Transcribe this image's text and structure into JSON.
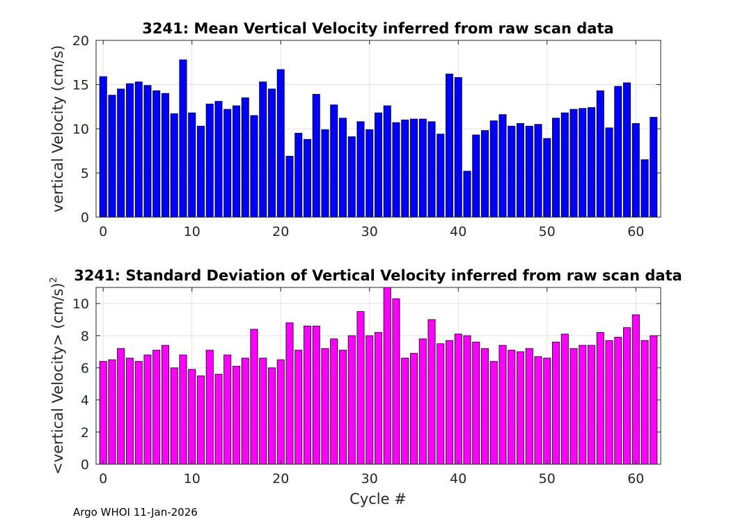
{
  "footer": "Argo WHOI 11-Jan-2026",
  "colors": {
    "mean_bar": "#0000ff",
    "std_bar": "#ff00ff",
    "edge": "#000000"
  },
  "chart_data": [
    {
      "type": "bar",
      "title": "3241: Mean Vertical Velocity inferred from raw scan data",
      "xlabel": "",
      "ylabel": "vertical Velocity (cm/s)",
      "xlim": [
        -0.8,
        62.8
      ],
      "ylim": [
        0,
        20
      ],
      "xticks": [
        0,
        10,
        20,
        30,
        40,
        50,
        60
      ],
      "yticks": [
        0,
        5,
        10,
        15,
        20
      ],
      "grid": true,
      "x": [
        0,
        1,
        2,
        3,
        4,
        5,
        6,
        7,
        8,
        9,
        10,
        11,
        12,
        13,
        14,
        15,
        16,
        17,
        18,
        19,
        20,
        21,
        22,
        23,
        24,
        25,
        26,
        27,
        28,
        29,
        30,
        31,
        32,
        33,
        34,
        35,
        36,
        37,
        38,
        39,
        40,
        41,
        42,
        43,
        44,
        45,
        46,
        47,
        48,
        49,
        50,
        51,
        52,
        53,
        54,
        55,
        56,
        57,
        58,
        59,
        60,
        61,
        62
      ],
      "values": [
        15.9,
        13.8,
        14.5,
        15.1,
        15.3,
        14.9,
        14.3,
        14.0,
        11.7,
        17.8,
        11.8,
        10.3,
        12.8,
        13.1,
        12.2,
        12.6,
        13.5,
        11.5,
        15.3,
        14.5,
        16.7,
        6.9,
        9.5,
        8.8,
        13.9,
        9.9,
        12.7,
        11.2,
        9.1,
        10.8,
        9.9,
        11.8,
        12.6,
        10.7,
        11.0,
        11.1,
        11.1,
        10.8,
        9.4,
        16.2,
        15.8,
        5.2,
        9.3,
        9.8,
        10.9,
        11.6,
        10.3,
        10.6,
        10.3,
        10.5,
        8.9,
        11.2,
        11.8,
        12.2,
        12.3,
        12.4,
        14.3,
        10.1,
        14.8,
        15.2,
        10.6,
        6.5,
        11.3
      ]
    },
    {
      "type": "bar",
      "title": "3241: Standard Deviation of Vertical Velocity inferred from raw scan data",
      "xlabel": "Cycle #",
      "ylabel": "<vertical Velocity> (cm/s)",
      "ylabel_sup": "2",
      "xlim": [
        -0.8,
        62.8
      ],
      "ylim": [
        0,
        11
      ],
      "xticks": [
        0,
        10,
        20,
        30,
        40,
        50,
        60
      ],
      "yticks": [
        0,
        2,
        4,
        6,
        8,
        10
      ],
      "grid": true,
      "x": [
        0,
        1,
        2,
        3,
        4,
        5,
        6,
        7,
        8,
        9,
        10,
        11,
        12,
        13,
        14,
        15,
        16,
        17,
        18,
        19,
        20,
        21,
        22,
        23,
        24,
        25,
        26,
        27,
        28,
        29,
        30,
        31,
        32,
        33,
        34,
        35,
        36,
        37,
        38,
        39,
        40,
        41,
        42,
        43,
        44,
        45,
        46,
        47,
        48,
        49,
        50,
        51,
        52,
        53,
        54,
        55,
        56,
        57,
        58,
        59,
        60,
        61,
        62
      ],
      "values": [
        6.4,
        6.5,
        7.2,
        6.6,
        6.4,
        6.8,
        7.1,
        7.4,
        6.0,
        6.8,
        5.9,
        5.5,
        7.1,
        5.6,
        6.8,
        6.1,
        6.6,
        8.4,
        6.6,
        6.0,
        6.5,
        8.8,
        7.1,
        8.6,
        8.6,
        7.2,
        7.8,
        7.1,
        8.0,
        9.5,
        8.0,
        8.2,
        11.0,
        10.3,
        6.6,
        6.9,
        7.8,
        9.0,
        7.5,
        7.7,
        8.1,
        8.0,
        7.6,
        7.2,
        6.4,
        7.4,
        7.1,
        7.0,
        7.2,
        6.7,
        6.6,
        7.6,
        8.1,
        7.2,
        7.4,
        7.4,
        8.2,
        7.7,
        7.9,
        8.5,
        9.3,
        7.7,
        8.0
      ]
    }
  ]
}
